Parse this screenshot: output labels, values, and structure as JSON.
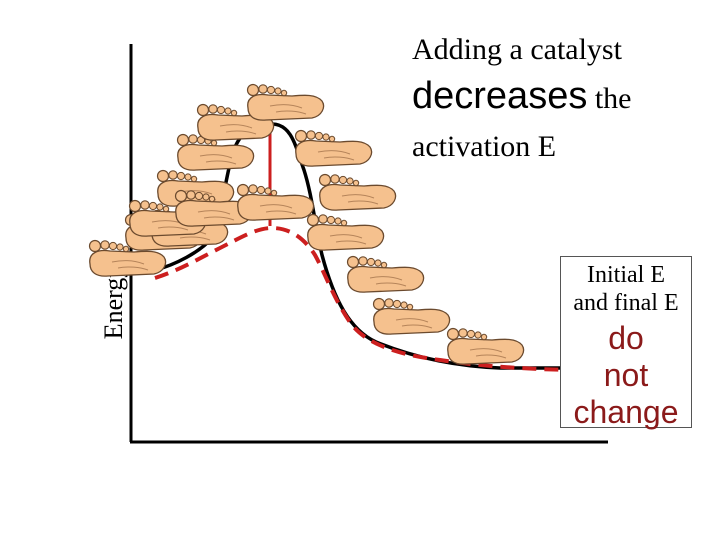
{
  "heading": {
    "line1": "Adding a catalyst",
    "line2_big": "decreases",
    "line2_rest": "the",
    "line3": "activation E"
  },
  "axis": {
    "y_label": "Energy"
  },
  "note": {
    "line1": "Initial E",
    "line2": "and final E",
    "line3": "do",
    "line4": "not",
    "line5": "change"
  },
  "colors": {
    "uncatalyzed_curve": "#000000",
    "catalyzed_curve": "#cc1f1f",
    "activation_marker": "#cc1f1f",
    "note_text_accent": "#8b1a1a",
    "foot_fill": "#f5c18e",
    "foot_outline": "#6b4a2e"
  },
  "figure": {
    "curves": [
      "uncatalyzed-solid",
      "catalyzed-dashed"
    ],
    "foot_icon": "foot-icon",
    "foot_count": 16
  }
}
